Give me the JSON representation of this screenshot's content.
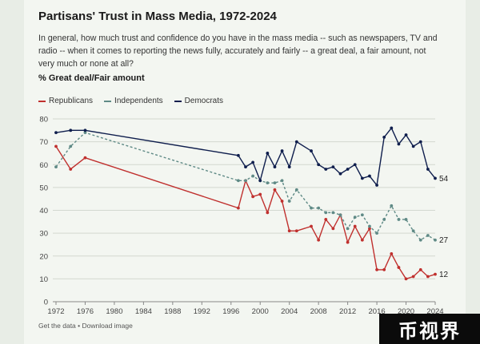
{
  "title": "Partisans' Trust in Mass Media, 1972-2024",
  "subtitle": "In general, how much trust and confidence do you have in the mass media -- such as newspapers, TV and radio -- when it comes to reporting the news fully, accurately and fairly -- a great deal, a fair amount, not very much or none at all?",
  "measure_label": "% Great deal/Fair amount",
  "footer": {
    "get_data": "Get the data",
    "separator": " • ",
    "download": "Download image"
  },
  "watermark": "币视界",
  "colors": {
    "republicans": "#c0302e",
    "independents": "#5f8a86",
    "democrats": "#0f1e4d"
  },
  "chart_data": {
    "type": "line",
    "title": "Partisans' Trust in Mass Media, 1972-2024",
    "xlabel": "",
    "ylabel": "% Great deal/Fair amount",
    "xlim": [
      1972,
      2024
    ],
    "ylim": [
      0,
      80
    ],
    "xticks": [
      1972,
      1976,
      1980,
      1984,
      1988,
      1992,
      1996,
      2000,
      2004,
      2008,
      2012,
      2016,
      2020,
      2024
    ],
    "yticks": [
      0,
      10,
      20,
      30,
      40,
      50,
      60,
      70,
      80
    ],
    "legend_position": "top-left",
    "grid": true,
    "series": [
      {
        "name": "Republicans",
        "style": "solid",
        "end_label": "12",
        "x": [
          1972,
          1974,
          1976,
          1997,
          1998,
          1999,
          2000,
          2001,
          2002,
          2003,
          2004,
          2005,
          2007,
          2008,
          2009,
          2010,
          2011,
          2012,
          2013,
          2014,
          2015,
          2016,
          2017,
          2018,
          2019,
          2020,
          2021,
          2022,
          2023,
          2024
        ],
        "values": [
          68,
          58,
          63,
          41,
          53,
          46,
          47,
          39,
          49,
          44,
          31,
          31,
          33,
          27,
          36,
          32,
          38,
          26,
          33,
          27,
          32,
          14,
          14,
          21,
          15,
          10,
          11,
          14,
          11,
          12
        ]
      },
      {
        "name": "Independents",
        "style": "dashed",
        "end_label": "27",
        "x": [
          1972,
          1974,
          1976,
          1997,
          1998,
          1999,
          2000,
          2001,
          2002,
          2003,
          2004,
          2005,
          2007,
          2008,
          2009,
          2010,
          2011,
          2012,
          2013,
          2014,
          2015,
          2016,
          2017,
          2018,
          2019,
          2020,
          2021,
          2022,
          2023,
          2024
        ],
        "values": [
          59,
          68,
          74,
          53,
          53,
          55,
          53,
          52,
          52,
          53,
          44,
          49,
          41,
          41,
          39,
          39,
          38,
          32,
          37,
          38,
          33,
          30,
          36,
          42,
          36,
          36,
          31,
          27,
          29,
          27
        ]
      },
      {
        "name": "Democrats",
        "style": "solid",
        "end_label": "54",
        "x": [
          1972,
          1974,
          1976,
          1997,
          1998,
          1999,
          2000,
          2001,
          2002,
          2003,
          2004,
          2005,
          2007,
          2008,
          2009,
          2010,
          2011,
          2012,
          2013,
          2014,
          2015,
          2016,
          2017,
          2018,
          2019,
          2020,
          2021,
          2022,
          2023,
          2024
        ],
        "values": [
          74,
          75,
          75,
          64,
          59,
          61,
          53,
          65,
          59,
          66,
          59,
          70,
          66,
          60,
          58,
          59,
          56,
          58,
          60,
          54,
          55,
          51,
          72,
          76,
          69,
          73,
          68,
          70,
          58,
          54
        ]
      }
    ]
  }
}
